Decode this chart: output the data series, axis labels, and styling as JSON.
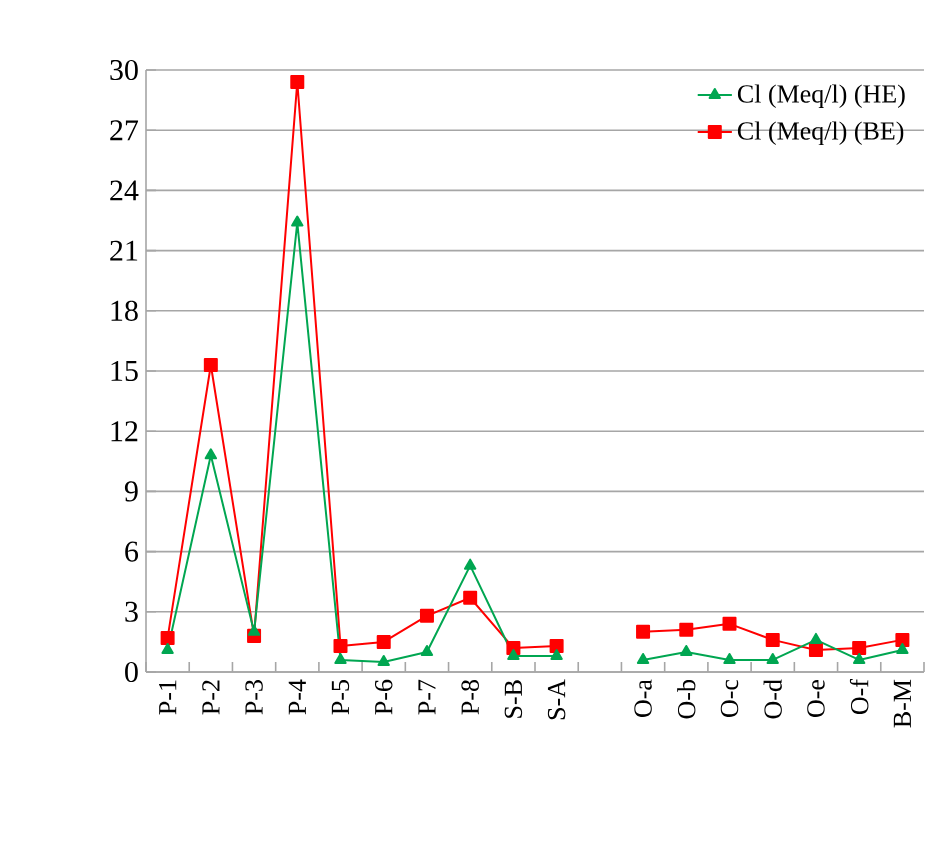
{
  "chart_data": {
    "type": "line",
    "categories": [
      "P-1",
      "P-2",
      "P-3",
      "P-4",
      "P-5",
      "P-6",
      "P-7",
      "P-8",
      "S-B",
      "S-A",
      null,
      "O-a",
      "O-b",
      "O-c",
      "O-d",
      "O-e",
      "O-f",
      "B-M"
    ],
    "series": [
      {
        "name": "Cl (Meq/l) (HE)",
        "color": "#00a651",
        "marker": "triangle",
        "values": [
          1.1,
          10.8,
          2.0,
          22.4,
          0.6,
          0.5,
          1.0,
          5.3,
          0.8,
          0.8,
          null,
          0.6,
          1.0,
          0.6,
          0.6,
          1.6,
          0.6,
          1.1
        ]
      },
      {
        "name": "Cl (Meq/l) (BE)",
        "color": "#ff0000",
        "marker": "square",
        "values": [
          1.7,
          15.3,
          1.8,
          29.4,
          1.3,
          1.5,
          2.8,
          3.7,
          1.2,
          1.3,
          null,
          2.0,
          2.1,
          2.4,
          1.6,
          1.1,
          1.2,
          1.6
        ]
      }
    ],
    "ylim": [
      0,
      30
    ],
    "yticks": [
      0,
      3,
      6,
      9,
      12,
      15,
      18,
      21,
      24,
      27,
      30
    ],
    "grid": "y",
    "legend": "top right",
    "line_style": "solid"
  }
}
